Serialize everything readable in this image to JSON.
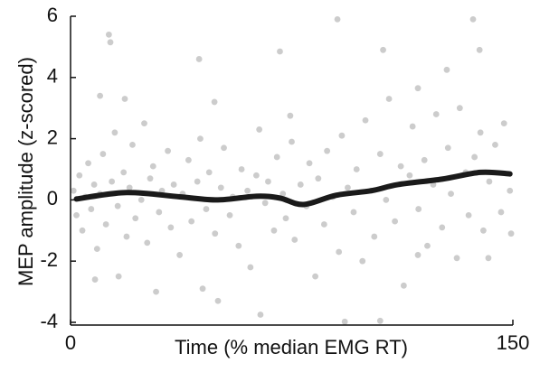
{
  "chart_data": {
    "type": "scatter",
    "xlabel": "Time (% median EMG RT)",
    "ylabel": "MEP amplitude (z-scored)",
    "xlim": [
      0,
      150
    ],
    "xticks": [
      0,
      150
    ],
    "ylim": [
      -4,
      6
    ],
    "yticks": [
      -4,
      -2,
      0,
      2,
      4,
      6
    ],
    "scatter": {
      "color": "#cccccc",
      "points": [
        [
          13,
          5.4
        ],
        [
          13.5,
          5.15
        ],
        [
          90.5,
          5.9
        ],
        [
          136.5,
          5.9
        ],
        [
          43.6,
          4.6
        ],
        [
          71,
          4.85
        ],
        [
          106,
          4.9
        ],
        [
          127.6,
          4.25
        ],
        [
          117.8,
          3.65
        ],
        [
          138.7,
          4.9
        ],
        [
          10,
          3.4
        ],
        [
          18.4,
          3.3
        ],
        [
          48.8,
          3.2
        ],
        [
          74.5,
          2.75
        ],
        [
          93,
          -3.98
        ],
        [
          105,
          -3.95
        ],
        [
          64.4,
          -3.75
        ],
        [
          44.8,
          -2.9
        ],
        [
          50,
          -3.3
        ],
        [
          8.3,
          -2.6
        ],
        [
          16.3,
          -2.5
        ],
        [
          29,
          -3.0
        ],
        [
          141.7,
          -1.9
        ],
        [
          149.4,
          -1.1
        ],
        [
          117.8,
          -1.8
        ],
        [
          1,
          0.3
        ],
        [
          2,
          -0.5
        ],
        [
          3,
          0.8
        ],
        [
          4,
          -1.0
        ],
        [
          5,
          0.1
        ],
        [
          6,
          1.2
        ],
        [
          7,
          -0.3
        ],
        [
          8,
          0.5
        ],
        [
          9,
          -1.6
        ],
        [
          10,
          0.2
        ],
        [
          11,
          1.5
        ],
        [
          12,
          -0.8
        ],
        [
          14,
          0.6
        ],
        [
          15,
          2.2
        ],
        [
          16,
          -0.2
        ],
        [
          18,
          0.9
        ],
        [
          19,
          -1.2
        ],
        [
          20,
          0.4
        ],
        [
          21,
          1.8
        ],
        [
          22,
          -0.6
        ],
        [
          24,
          0.0
        ],
        [
          25,
          2.5
        ],
        [
          26,
          -1.4
        ],
        [
          27,
          0.7
        ],
        [
          28,
          1.1
        ],
        [
          30,
          -0.4
        ],
        [
          31,
          0.3
        ],
        [
          33,
          1.6
        ],
        [
          34,
          -0.9
        ],
        [
          35,
          0.5
        ],
        [
          37,
          -1.8
        ],
        [
          38,
          0.2
        ],
        [
          40,
          1.3
        ],
        [
          41,
          -0.7
        ],
        [
          43,
          0.6
        ],
        [
          44,
          2.0
        ],
        [
          46,
          -0.3
        ],
        [
          47,
          0.9
        ],
        [
          49,
          -1.1
        ],
        [
          51,
          0.4
        ],
        [
          52,
          1.7
        ],
        [
          54,
          -0.5
        ],
        [
          55,
          0.1
        ],
        [
          57,
          -1.5
        ],
        [
          58,
          1.0
        ],
        [
          60,
          0.3
        ],
        [
          61,
          -2.2
        ],
        [
          63,
          0.8
        ],
        [
          64,
          2.3
        ],
        [
          66,
          -0.1
        ],
        [
          67,
          0.6
        ],
        [
          69,
          -1.0
        ],
        [
          70,
          1.4
        ],
        [
          72,
          0.2
        ],
        [
          73,
          -0.6
        ],
        [
          75,
          1.9
        ],
        [
          76,
          -1.3
        ],
        [
          78,
          0.5
        ],
        [
          80,
          -0.2
        ],
        [
          81,
          1.2
        ],
        [
          83,
          -2.5
        ],
        [
          84,
          0.7
        ],
        [
          86,
          -0.8
        ],
        [
          87,
          1.6
        ],
        [
          89,
          0.1
        ],
        [
          91,
          -1.7
        ],
        [
          92,
          2.1
        ],
        [
          94,
          0.4
        ],
        [
          96,
          -0.4
        ],
        [
          97,
          1.0
        ],
        [
          99,
          -2.0
        ],
        [
          100,
          2.6
        ],
        [
          102,
          0.3
        ],
        [
          103,
          -1.2
        ],
        [
          105,
          1.5
        ],
        [
          107,
          0.0
        ],
        [
          108,
          3.3
        ],
        [
          110,
          -0.7
        ],
        [
          112,
          1.1
        ],
        [
          113,
          -2.8
        ],
        [
          115,
          0.8
        ],
        [
          116,
          2.4
        ],
        [
          118,
          -0.3
        ],
        [
          120,
          1.3
        ],
        [
          121,
          -1.5
        ],
        [
          123,
          0.5
        ],
        [
          124,
          2.8
        ],
        [
          126,
          -0.9
        ],
        [
          128,
          1.7
        ],
        [
          129,
          0.2
        ],
        [
          131,
          -1.9
        ],
        [
          132,
          3.0
        ],
        [
          134,
          0.9
        ],
        [
          135,
          -0.5
        ],
        [
          137,
          1.4
        ],
        [
          139,
          2.2
        ],
        [
          140,
          -1.0
        ],
        [
          142,
          0.6
        ],
        [
          144,
          1.8
        ],
        [
          146,
          -0.4
        ],
        [
          147,
          2.5
        ],
        [
          149,
          0.3
        ]
      ]
    },
    "line": {
      "color": "#1a1a1a",
      "x": [
        2,
        19,
        37,
        50,
        63,
        71,
        79,
        90,
        102,
        111,
        126,
        139,
        149
      ],
      "values": [
        0.03,
        0.24,
        0.1,
        0.0,
        0.12,
        0.06,
        -0.15,
        0.15,
        0.3,
        0.5,
        0.68,
        0.9,
        0.85
      ]
    }
  }
}
